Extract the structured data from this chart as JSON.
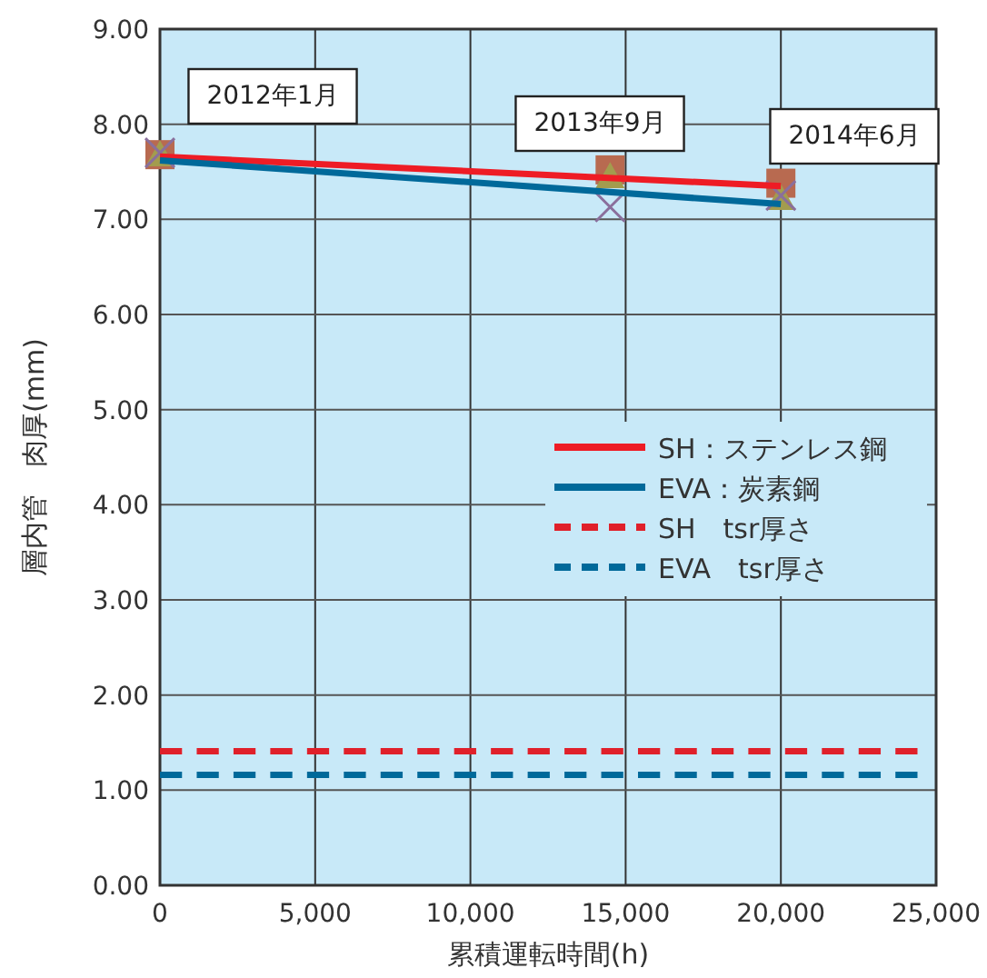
{
  "chart_data": {
    "type": "line",
    "xlabel": "累積運転時間(h)",
    "ylabel": "層内管　肉厚(mm)",
    "xlim": [
      0,
      25000
    ],
    "ylim": [
      0,
      9
    ],
    "xticks": [
      0,
      {
        "value": 5000,
        "label": "5,000"
      },
      {
        "value": 10000,
        "label": "10,000"
      },
      {
        "value": 15000,
        "label": "15,000"
      },
      {
        "value": 20000,
        "label": "20,000"
      },
      {
        "value": 25000,
        "label": "25,000"
      }
    ],
    "yticks": [
      {
        "value": 0,
        "label": "0.00"
      },
      {
        "value": 1,
        "label": "1.00"
      },
      {
        "value": 2,
        "label": "2.00"
      },
      {
        "value": 3,
        "label": "3.00"
      },
      {
        "value": 4,
        "label": "4.00"
      },
      {
        "value": 5,
        "label": "5.00"
      },
      {
        "value": 6,
        "label": "6.00"
      },
      {
        "value": 7,
        "label": "7.00"
      },
      {
        "value": 8,
        "label": "8.00"
      },
      {
        "value": 9,
        "label": "9.00"
      }
    ],
    "grid": true,
    "legend": "right",
    "series": [
      {
        "type": "scatter",
        "marker": "square",
        "color": "#b86a50",
        "x": [
          0,
          14500,
          20000
        ],
        "values": [
          7.68,
          7.52,
          7.38
        ]
      },
      {
        "type": "scatter",
        "marker": "triangle",
        "color": "#a39c4e",
        "x": [
          0,
          14500,
          20000
        ],
        "values": [
          7.68,
          7.45,
          7.22
        ]
      },
      {
        "type": "scatter",
        "marker": "cross",
        "color": "#8a6f9c",
        "x": [
          0,
          14500,
          20000
        ],
        "values": [
          7.7,
          7.13,
          7.25
        ]
      },
      {
        "name": "SH：ステンレス鋼",
        "color": "#ee1c25",
        "x": [
          0,
          20000
        ],
        "values": [
          7.66,
          7.35
        ]
      },
      {
        "name": "EVA：炭素鋼",
        "color": "#00699a",
        "x": [
          0,
          20000
        ],
        "values": [
          7.62,
          7.16
        ]
      },
      {
        "name": "SH　tsr厚さ",
        "color": "#e0202a",
        "line_style": "dashed",
        "x": [
          0,
          24400
        ],
        "values": [
          1.41,
          1.41
        ]
      },
      {
        "name": "EVA　tsr厚さ",
        "color": "#00699a",
        "line_style": "dashed",
        "x": [
          0,
          24400
        ],
        "values": [
          1.16,
          1.16
        ]
      }
    ],
    "annotations": [
      "2012年1月",
      "2013年9月",
      "2014年6月"
    ]
  }
}
